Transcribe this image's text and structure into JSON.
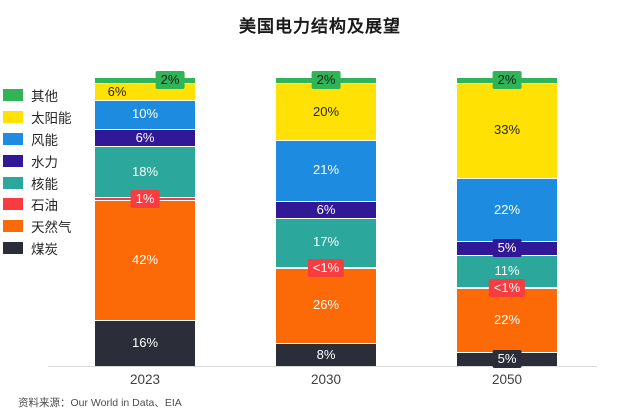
{
  "title": "美国电力结构及展望",
  "source_note": "资料来源：Our World in Data、EIA",
  "colors": {
    "background": "#ffffff",
    "axis_line": "#d9d9d9",
    "title_text": "#1a1a1a",
    "tick_text": "#404040",
    "source_text": "#4d4d4d"
  },
  "chart_data": {
    "type": "bar",
    "stacked": true,
    "unit": "%",
    "grid": false,
    "legend_position": "left",
    "ylim": [
      0,
      100
    ],
    "categories": [
      "2023",
      "2030",
      "2050"
    ],
    "series": [
      {
        "key": "coal",
        "name": "煤炭",
        "color": "#2b2e38",
        "label_color": "#ffffff",
        "values": [
          16,
          8,
          5
        ],
        "labels": [
          "16%",
          "8%",
          "5%"
        ]
      },
      {
        "key": "gas",
        "name": "天然气",
        "color": "#fb6a07",
        "label_color": "#ffffff",
        "values": [
          42,
          26,
          22
        ],
        "labels": [
          "42%",
          "26%",
          "22%"
        ]
      },
      {
        "key": "oil",
        "name": "石油",
        "color": "#f93c40",
        "label_color": "#ffffff",
        "values": [
          1,
          0.5,
          0.5
        ],
        "labels": [
          "1%",
          "<1%",
          "<1%"
        ],
        "callout": true
      },
      {
        "key": "nuclear",
        "name": "核能",
        "color": "#2ba79b",
        "label_color": "#ffffff",
        "values": [
          18,
          17,
          11
        ],
        "labels": [
          "18%",
          "17%",
          "11%"
        ]
      },
      {
        "key": "hydro",
        "name": "水力",
        "color": "#311896",
        "label_color": "#ffffff",
        "values": [
          6,
          6,
          5
        ],
        "labels": [
          "6%",
          "6%",
          "5%"
        ]
      },
      {
        "key": "wind",
        "name": "风能",
        "color": "#1d8ce0",
        "label_color": "#ffffff",
        "values": [
          10,
          21,
          22
        ],
        "labels": [
          "10%",
          "21%",
          "22%"
        ]
      },
      {
        "key": "solar",
        "name": "太阳能",
        "color": "#ffe103",
        "label_color": "#262626",
        "values": [
          6,
          20,
          33
        ],
        "labels": [
          "6%",
          "20%",
          "33%"
        ]
      },
      {
        "key": "other",
        "name": "其他",
        "color": "#2fb457",
        "label_color": "#1a1a1a",
        "values": [
          2,
          2,
          2
        ],
        "labels": [
          "2%",
          "2%",
          "2%"
        ],
        "callout": true
      }
    ],
    "legend_order": [
      "other",
      "solar",
      "wind",
      "hydro",
      "nuclear",
      "oil",
      "gas",
      "coal"
    ],
    "label_hints": {
      "2023": {
        "other": "right",
        "solar": "left"
      }
    }
  }
}
